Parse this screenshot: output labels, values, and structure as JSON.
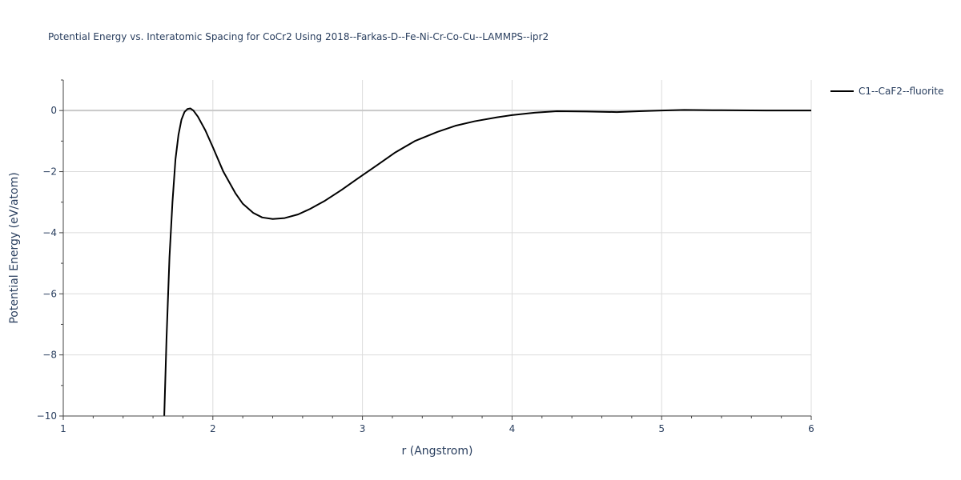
{
  "chart_data": {
    "type": "line",
    "title": "Potential Energy vs. Interatomic Spacing for CoCr2 Using 2018--Farkas-D--Fe-Ni-Cr-Co-Cu--LAMMPS--ipr2",
    "xlabel": "r (Angstrom)",
    "ylabel": "Potential Energy (eV/atom)",
    "xlim": [
      1,
      6
    ],
    "ylim": [
      -10,
      1
    ],
    "xticks": [
      1,
      2,
      3,
      4,
      5,
      6
    ],
    "xtick_labels": [
      "1",
      "2",
      "3",
      "4",
      "5",
      "6"
    ],
    "yticks": [
      0,
      -2,
      -4,
      -6,
      -8,
      -10
    ],
    "ytick_labels": [
      "0",
      "−2",
      "−4",
      "−6",
      "−8",
      "−10"
    ],
    "grid": true,
    "legend_position": "top-right",
    "series": [
      {
        "name": "C1--CaF2--fluorite",
        "color": "#000000",
        "x": [
          1.675,
          1.69,
          1.71,
          1.73,
          1.75,
          1.77,
          1.79,
          1.81,
          1.83,
          1.85,
          1.87,
          1.9,
          1.95,
          2.0,
          2.07,
          2.15,
          2.2,
          2.27,
          2.33,
          2.4,
          2.48,
          2.57,
          2.65,
          2.75,
          2.86,
          2.97,
          3.1,
          3.22,
          3.35,
          3.5,
          3.62,
          3.75,
          3.9,
          4.0,
          4.15,
          4.3,
          4.5,
          4.7,
          4.85,
          5.0,
          5.15,
          5.4,
          5.7,
          6.0
        ],
        "y": [
          -10.0,
          -7.5,
          -4.8,
          -3.0,
          -1.6,
          -0.8,
          -0.3,
          -0.05,
          0.05,
          0.07,
          0.0,
          -0.2,
          -0.65,
          -1.2,
          -2.0,
          -2.7,
          -3.05,
          -3.35,
          -3.5,
          -3.55,
          -3.52,
          -3.4,
          -3.22,
          -2.95,
          -2.6,
          -2.22,
          -1.78,
          -1.37,
          -1.0,
          -0.7,
          -0.5,
          -0.35,
          -0.22,
          -0.15,
          -0.07,
          -0.02,
          -0.03,
          -0.05,
          -0.02,
          0.0,
          0.02,
          0.01,
          0.0,
          0.0
        ]
      }
    ]
  }
}
